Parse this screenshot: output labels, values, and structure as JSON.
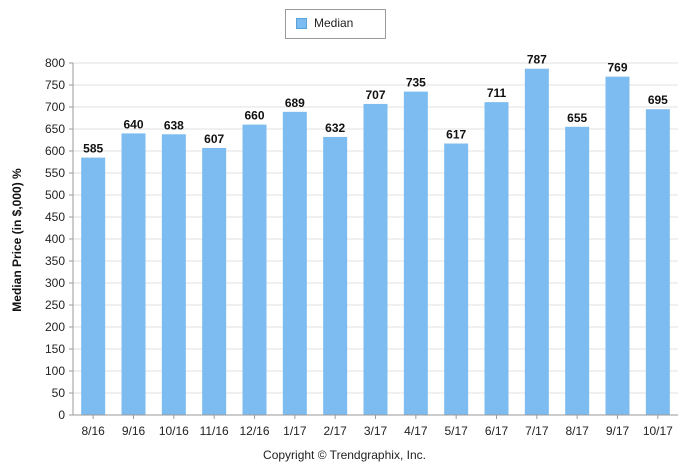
{
  "chart_data": {
    "type": "bar",
    "categories": [
      "8/16",
      "9/16",
      "10/16",
      "11/16",
      "12/16",
      "1/17",
      "2/17",
      "3/17",
      "4/17",
      "5/17",
      "6/17",
      "7/17",
      "8/17",
      "9/17",
      "10/17"
    ],
    "series": [
      {
        "name": "Median",
        "values": [
          585,
          640,
          638,
          607,
          660,
          689,
          632,
          707,
          735,
          617,
          711,
          787,
          655,
          769,
          695
        ],
        "color": "#7cbcf0"
      }
    ],
    "ylabel": "Median Price (in $,000) %",
    "xlabel": "",
    "ylim": [
      0,
      800
    ],
    "yticks": [
      0,
      50,
      100,
      150,
      200,
      250,
      300,
      350,
      400,
      450,
      500,
      550,
      600,
      650,
      700,
      750,
      800
    ],
    "grid": true,
    "legend_position": "top-center",
    "data_labels": true
  },
  "legend": {
    "label": "Median"
  },
  "footer": {
    "copyright": "Copyright © Trendgraphix, Inc."
  },
  "colors": {
    "bar": "#7cbcf0",
    "bar_edge": "#5aa2dc",
    "grid": "#e2e2e2",
    "axis": "#9a9a9a"
  }
}
